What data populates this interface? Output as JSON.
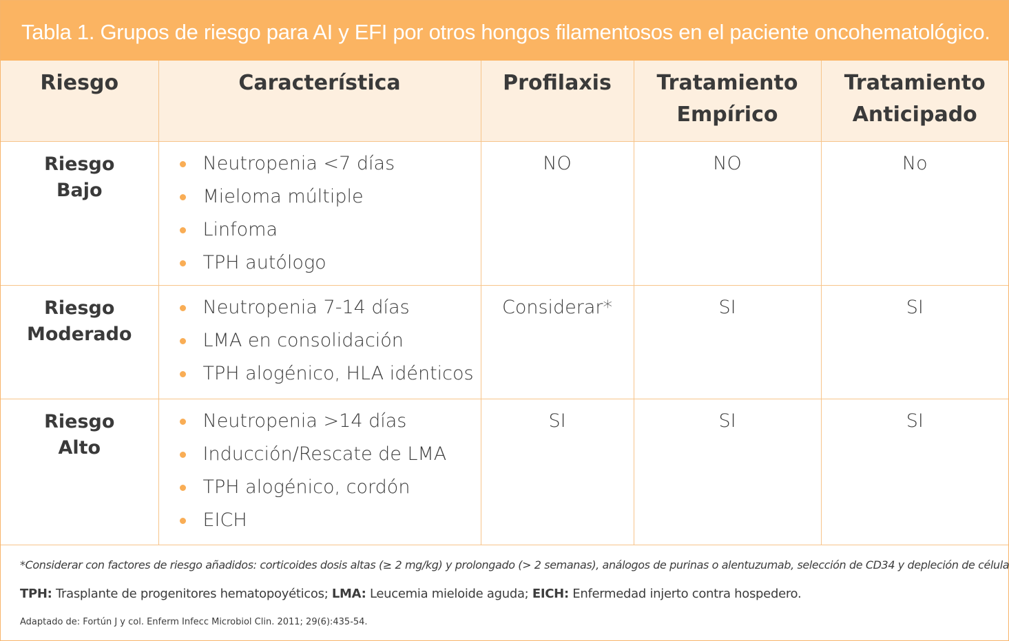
{
  "title": "Tabla 1. Grupos de riesgo para AI y EFI por otros hongos filamentosos en el paciente oncohematológico.",
  "table": {
    "headers": [
      [
        "Riesgo"
      ],
      [
        "Característica"
      ],
      [
        "Profilaxis"
      ],
      [
        "Tratamiento",
        "Empírico"
      ],
      [
        "Tratamiento",
        "Anticipado"
      ]
    ],
    "rows": [
      {
        "risk": [
          "Riesgo",
          "Bajo"
        ],
        "features": [
          "Neutropenia <7 días",
          "Mieloma múltiple",
          "Linfoma",
          "TPH autólogo"
        ],
        "prophylaxis": "NO",
        "empirical": "NO",
        "anticipated": "No"
      },
      {
        "risk": [
          "Riesgo",
          "Moderado"
        ],
        "features": [
          "Neutropenia 7-14 días",
          "LMA en consolidación",
          "TPH alogénico, HLA idénticos"
        ],
        "prophylaxis": "Considerar*",
        "empirical": "SI",
        "anticipated": "SI"
      },
      {
        "risk": [
          "Riesgo",
          "Alto"
        ],
        "features": [
          "Neutropenia >14 días",
          "Inducción/Rescate de LMA",
          "TPH alogénico, cordón",
          "EICH"
        ],
        "prophylaxis": "SI",
        "empirical": "SI",
        "anticipated": "SI"
      }
    ]
  },
  "footer": {
    "footnote": "*Considerar con factores de riesgo añadidos: corticoides dosis altas (≥ 2 mg/kg) y prolongado (> 2 semanas), análogos de purinas o alentuzumab, selección de CD34 y depleción de células T.",
    "abbreviations": [
      {
        "term": "TPH:",
        "definition": "Trasplante de progenitores hematopoyéticos;"
      },
      {
        "term": "LMA:",
        "definition": "Leucemia mieloide aguda;"
      },
      {
        "term": "EICH:",
        "definition": "Enfermedad injerto contra hospedero."
      }
    ],
    "source": "Adaptado de: Fortún J y col. Enferm Infecc Microbiol Clin. 2011; 29(6):435-54."
  }
}
